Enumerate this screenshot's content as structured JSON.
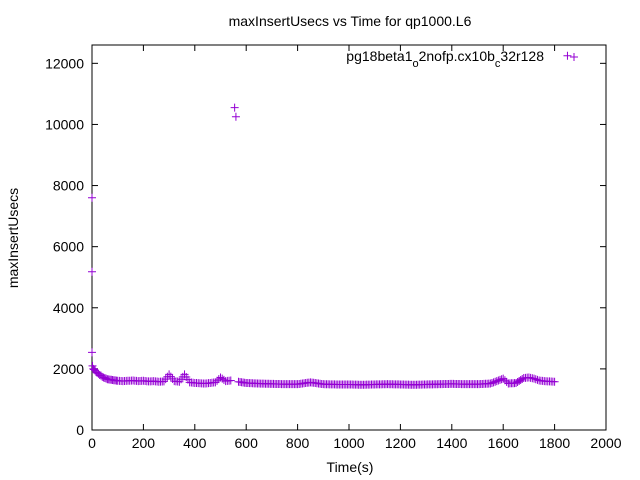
{
  "chart_data": {
    "type": "scatter",
    "title": "maxInsertUsecs vs Time for qp1000.L6",
    "xlabel": "Time(s)",
    "ylabel": "maxInsertUsecs",
    "xlim": [
      0,
      2000
    ],
    "ylim": [
      0,
      12600
    ],
    "xticks": [
      0,
      200,
      400,
      600,
      800,
      1000,
      1200,
      1400,
      1600,
      1800,
      2000
    ],
    "yticks": [
      0,
      2000,
      4000,
      6000,
      8000,
      10000,
      12000
    ],
    "grid": false,
    "legend_position": "top-right",
    "marker": "plus",
    "series": [
      {
        "name": "pg18beta1_o2nofp.cx10b_c32r128",
        "color": "#9400d3",
        "points": [
          [
            0,
            7600
          ],
          [
            0,
            5180
          ],
          [
            0,
            2540
          ],
          [
            2,
            2100
          ],
          [
            5,
            2000
          ],
          [
            8,
            1980
          ],
          [
            12,
            1950
          ],
          [
            16,
            1900
          ],
          [
            20,
            1870
          ],
          [
            25,
            1840
          ],
          [
            30,
            1800
          ],
          [
            35,
            1780
          ],
          [
            40,
            1740
          ],
          [
            50,
            1700
          ],
          [
            60,
            1660
          ],
          [
            70,
            1650
          ],
          [
            85,
            1630
          ],
          [
            100,
            1610
          ],
          [
            120,
            1600
          ],
          [
            140,
            1610
          ],
          [
            160,
            1620
          ],
          [
            180,
            1600
          ],
          [
            200,
            1610
          ],
          [
            220,
            1590
          ],
          [
            240,
            1600
          ],
          [
            260,
            1580
          ],
          [
            280,
            1590
          ],
          [
            300,
            1820
          ],
          [
            320,
            1600
          ],
          [
            340,
            1580
          ],
          [
            360,
            1820
          ],
          [
            380,
            1560
          ],
          [
            400,
            1540
          ],
          [
            420,
            1530
          ],
          [
            440,
            1520
          ],
          [
            460,
            1540
          ],
          [
            480,
            1560
          ],
          [
            500,
            1720
          ],
          [
            520,
            1600
          ],
          [
            540,
            1620
          ],
          [
            555,
            10550
          ],
          [
            560,
            10250
          ],
          [
            570,
            1580
          ],
          [
            600,
            1540
          ],
          [
            650,
            1520
          ],
          [
            700,
            1510
          ],
          [
            750,
            1500
          ],
          [
            800,
            1500
          ],
          [
            850,
            1560
          ],
          [
            900,
            1500
          ],
          [
            950,
            1490
          ],
          [
            1000,
            1490
          ],
          [
            1050,
            1480
          ],
          [
            1100,
            1490
          ],
          [
            1150,
            1500
          ],
          [
            1200,
            1490
          ],
          [
            1250,
            1480
          ],
          [
            1300,
            1490
          ],
          [
            1350,
            1500
          ],
          [
            1400,
            1510
          ],
          [
            1450,
            1500
          ],
          [
            1500,
            1500
          ],
          [
            1550,
            1520
          ],
          [
            1600,
            1680
          ],
          [
            1620,
            1520
          ],
          [
            1650,
            1540
          ],
          [
            1680,
            1700
          ],
          [
            1700,
            1720
          ],
          [
            1720,
            1680
          ],
          [
            1740,
            1620
          ],
          [
            1760,
            1600
          ],
          [
            1780,
            1590
          ],
          [
            1800,
            1580
          ],
          [
            1850,
            12250
          ]
        ]
      }
    ]
  }
}
